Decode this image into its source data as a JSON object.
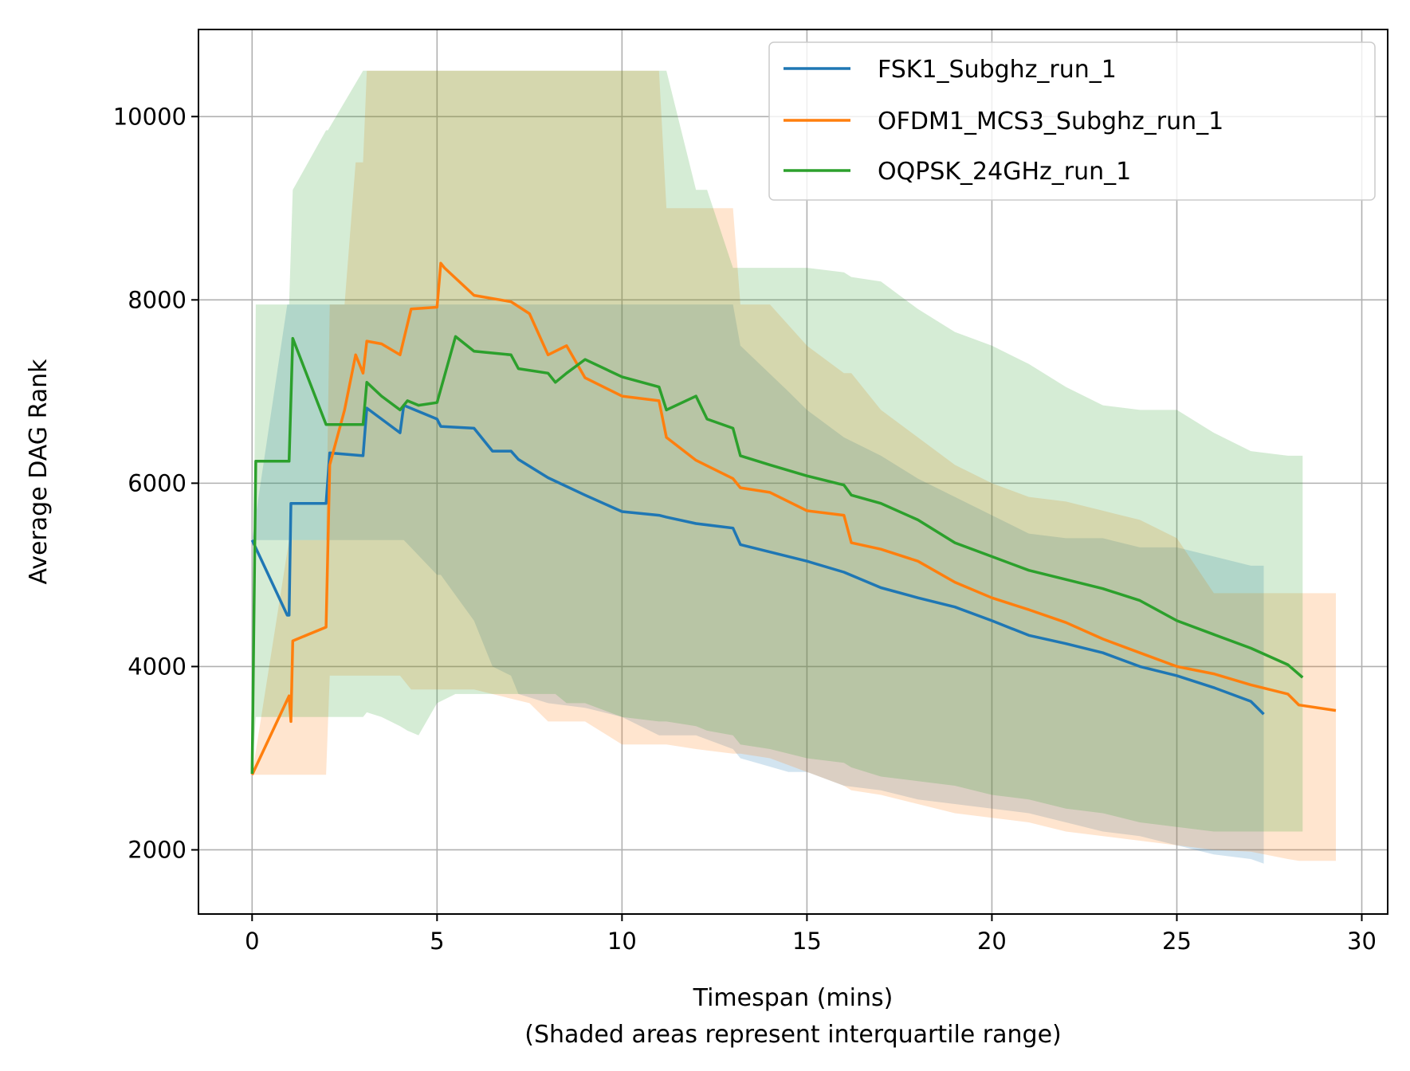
{
  "chart_data": {
    "type": "line",
    "title": "",
    "xlabel": "Timespan (mins)",
    "xlabel_note": "(Shaded areas represent interquartile range)",
    "ylabel": "Average DAG Rank",
    "xlim": [
      -1.45,
      30.7
    ],
    "ylim": [
      1300,
      10950
    ],
    "xticks": [
      0,
      5,
      10,
      15,
      20,
      25,
      30
    ],
    "yticks": [
      2000,
      4000,
      6000,
      8000,
      10000
    ],
    "grid": true,
    "legend_position": "top-right",
    "series": [
      {
        "name": "FSK1_Subghz_run_1",
        "color": "#1f77b4",
        "band_opacity": 0.2,
        "x": [
          0,
          0.95,
          1.0,
          1.05,
          2.0,
          2.1,
          3.0,
          3.1,
          4.0,
          4.1,
          5.0,
          5.1,
          6.0,
          6.5,
          7.0,
          7.2,
          8.0,
          9.0,
          10.0,
          11.0,
          11.2,
          12.0,
          13.0,
          13.2,
          14.5,
          15.0,
          16.0,
          17.0,
          18.0,
          19.0,
          20.0,
          21.0,
          22.0,
          23.0,
          24.0,
          25.0,
          26.0,
          27.0,
          27.35
        ],
        "y": [
          5380,
          4560,
          4560,
          5780,
          5780,
          6330,
          6300,
          6820,
          6550,
          6850,
          6700,
          6620,
          6600,
          6350,
          6350,
          6260,
          6060,
          5870,
          5690,
          5650,
          5630,
          5560,
          5510,
          5330,
          5200,
          5150,
          5030,
          4860,
          4750,
          4650,
          4500,
          4340,
          4250,
          4150,
          4000,
          3900,
          3770,
          3620,
          3480
        ],
        "q1": [
          5380,
          5380,
          5380,
          5380,
          5380,
          5380,
          5380,
          5380,
          5380,
          5380,
          5000,
          5000,
          4500,
          4000,
          3900,
          3700,
          3600,
          3550,
          3450,
          3250,
          3250,
          3250,
          3100,
          3000,
          2850,
          2850,
          2700,
          2650,
          2550,
          2500,
          2450,
          2400,
          2300,
          2200,
          2150,
          2050,
          1950,
          1900,
          1850
        ],
        "q3": [
          5380,
          7950,
          7950,
          7950,
          7950,
          7950,
          7950,
          7950,
          7950,
          7950,
          7950,
          7950,
          7950,
          7950,
          7950,
          7950,
          7950,
          7950,
          7950,
          7950,
          7950,
          7950,
          7950,
          7500,
          7000,
          6800,
          6500,
          6300,
          6050,
          5850,
          5650,
          5450,
          5400,
          5400,
          5300,
          5300,
          5200,
          5100,
          5100
        ]
      },
      {
        "name": "OFDM1_MCS3_Subghz_run_1",
        "color": "#ff7f0e",
        "band_opacity": 0.2,
        "x": [
          0,
          1.0,
          1.05,
          1.1,
          2.0,
          2.1,
          2.5,
          2.8,
          3.0,
          3.1,
          3.5,
          4.0,
          4.3,
          5.0,
          5.1,
          5.2,
          6.0,
          7.0,
          7.5,
          8.0,
          8.5,
          9.0,
          10.0,
          11.0,
          11.2,
          12.0,
          13.0,
          13.2,
          14.0,
          15.0,
          16.0,
          16.2,
          17.0,
          18.0,
          19.0,
          20.0,
          21.0,
          22.0,
          23.0,
          24.0,
          25.0,
          26.0,
          27.0,
          28.0,
          28.3,
          29.3
        ],
        "y": [
          2820,
          3680,
          3400,
          4280,
          4430,
          6200,
          6800,
          7400,
          7200,
          7550,
          7520,
          7400,
          7900,
          7920,
          8400,
          8350,
          8050,
          7980,
          7850,
          7400,
          7500,
          7150,
          6950,
          6900,
          6500,
          6250,
          6050,
          5950,
          5900,
          5700,
          5650,
          5350,
          5280,
          5150,
          4920,
          4750,
          4620,
          4480,
          4300,
          4150,
          4000,
          3920,
          3800,
          3700,
          3580,
          3520
        ],
        "q1": [
          2820,
          2820,
          2820,
          2820,
          2820,
          3900,
          3900,
          3900,
          3900,
          3900,
          3900,
          3900,
          3750,
          3750,
          3750,
          3750,
          3750,
          3650,
          3600,
          3400,
          3400,
          3400,
          3150,
          3150,
          3150,
          3100,
          3050,
          3050,
          3000,
          2850,
          2700,
          2650,
          2600,
          2500,
          2400,
          2350,
          2300,
          2200,
          2150,
          2100,
          2050,
          2000,
          1980,
          1900,
          1880,
          1880
        ],
        "q3": [
          2820,
          5380,
          5380,
          5380,
          5380,
          7950,
          7950,
          9500,
          9500,
          10500,
          10500,
          10500,
          10500,
          10500,
          10500,
          10500,
          10500,
          10500,
          10500,
          10500,
          10500,
          10500,
          10500,
          10500,
          9000,
          9000,
          9000,
          7950,
          7950,
          7500,
          7200,
          7200,
          6800,
          6500,
          6200,
          6000,
          5850,
          5800,
          5700,
          5600,
          5400,
          4800,
          4800,
          4800,
          4800,
          4800
        ]
      },
      {
        "name": "OQPSK_24GHz_run_1",
        "color": "#2ca02c",
        "band_opacity": 0.2,
        "x": [
          0,
          0.1,
          1.0,
          1.1,
          2.0,
          2.05,
          3.0,
          3.1,
          3.5,
          4.0,
          4.2,
          4.5,
          5.0,
          5.5,
          6.0,
          7.0,
          7.2,
          8.0,
          8.2,
          8.5,
          9.0,
          10.0,
          11.0,
          11.2,
          12.0,
          12.3,
          13.0,
          13.2,
          14.0,
          15.0,
          16.0,
          16.2,
          17.0,
          18.0,
          19.0,
          20.0,
          21.0,
          22.0,
          23.0,
          24.0,
          25.0,
          26.0,
          27.0,
          28.0,
          28.4
        ],
        "y": [
          2830,
          6240,
          6240,
          7580,
          6640,
          6640,
          6640,
          7100,
          6950,
          6800,
          6900,
          6850,
          6880,
          7600,
          7440,
          7400,
          7250,
          7200,
          7100,
          7200,
          7350,
          7160,
          7050,
          6800,
          6950,
          6700,
          6600,
          6300,
          6200,
          6080,
          5980,
          5870,
          5780,
          5600,
          5350,
          5200,
          5050,
          4950,
          4850,
          4720,
          4500,
          4350,
          4200,
          4020,
          3880
        ],
        "q1": [
          2830,
          3450,
          3450,
          3450,
          3450,
          3450,
          3450,
          3500,
          3450,
          3350,
          3300,
          3250,
          3600,
          3700,
          3700,
          3700,
          3700,
          3700,
          3700,
          3600,
          3600,
          3450,
          3400,
          3400,
          3350,
          3300,
          3250,
          3150,
          3100,
          3000,
          2950,
          2900,
          2800,
          2750,
          2700,
          2600,
          2550,
          2450,
          2400,
          2300,
          2250,
          2200,
          2200,
          2200,
          2200
        ],
        "q3": [
          2830,
          7950,
          7950,
          9200,
          9850,
          9850,
          10500,
          10500,
          10500,
          10500,
          10500,
          10500,
          10500,
          10500,
          10500,
          10500,
          10500,
          10500,
          10500,
          10500,
          10500,
          10500,
          10500,
          10500,
          9200,
          9200,
          8350,
          8350,
          8350,
          8350,
          8300,
          8250,
          8200,
          7900,
          7650,
          7500,
          7300,
          7050,
          6850,
          6800,
          6800,
          6550,
          6350,
          6300,
          6300
        ]
      }
    ]
  }
}
